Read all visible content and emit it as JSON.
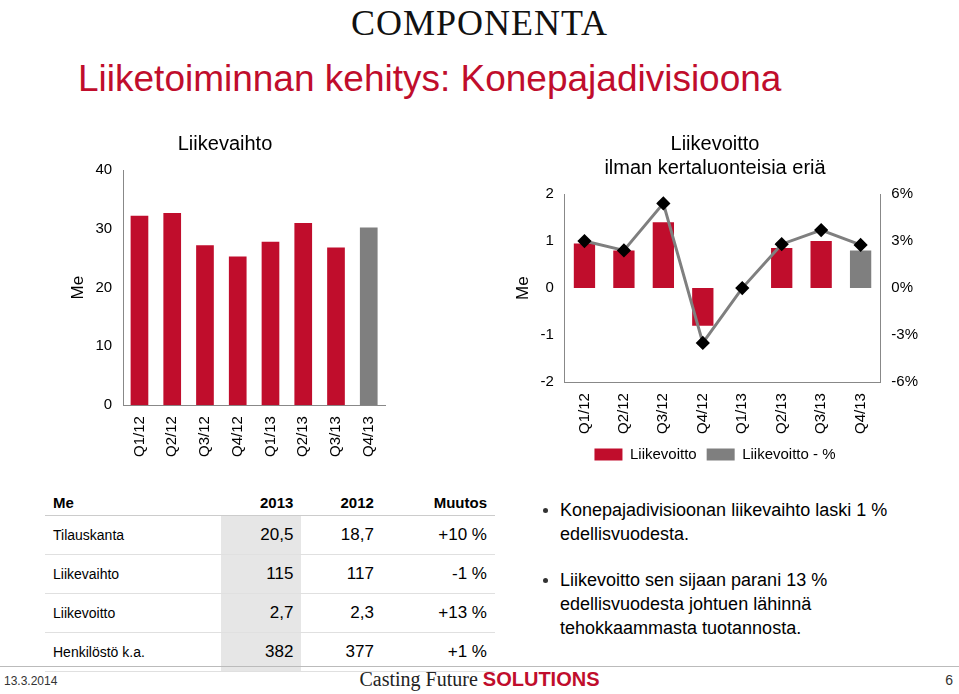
{
  "logo": "COMPONENTA",
  "title": "Liiketoiminnan kehitys: Konepajadivisioona",
  "chart_data": [
    {
      "type": "bar",
      "title": "Liikevaihto",
      "y_label": "Me",
      "categories": [
        "Q1/12",
        "Q2/12",
        "Q3/12",
        "Q4/12",
        "Q1/13",
        "Q2/13",
        "Q3/13",
        "Q4/13"
      ],
      "values": [
        32.2,
        32.7,
        27.2,
        25.3,
        27.8,
        31.0,
        26.8,
        30.2
      ],
      "colors": [
        "#c00d2c",
        "#c00d2c",
        "#c00d2c",
        "#c00d2c",
        "#c00d2c",
        "#c00d2c",
        "#c00d2c",
        "#7f7f7f"
      ],
      "ylim": [
        0,
        40
      ],
      "yticks": [
        0,
        10,
        20,
        30,
        40
      ],
      "grid": false
    },
    {
      "type": "bar",
      "title": [
        "Liikevoitto",
        "ilman kertaluonteisia eriä"
      ],
      "y_label": "Me",
      "categories": [
        "Q1/12",
        "Q2/12",
        "Q3/12",
        "Q4/12",
        "Q1/13",
        "Q2/13",
        "Q3/13",
        "Q4/13"
      ],
      "series": [
        {
          "name": "Liikevoitto",
          "type": "bar",
          "colors": [
            "#c00d2c",
            "#c00d2c",
            "#c00d2c",
            "#c00d2c",
            "#c00d2c",
            "#c00d2c",
            "#c00d2c",
            "#7f7f7f"
          ],
          "values": [
            0.95,
            0.8,
            1.4,
            -0.8,
            0.0,
            0.85,
            1.0,
            0.8
          ]
        },
        {
          "name": "Liikevoitto - %",
          "type": "line",
          "axis": "y2",
          "color": "#7f7f7f",
          "marker": "diamond",
          "values": [
            3.0,
            2.4,
            5.4,
            -3.5,
            0.0,
            2.8,
            3.7,
            2.75
          ]
        }
      ],
      "ylim": [
        -2,
        2
      ],
      "yticks": [
        -2,
        -1,
        0,
        1,
        2
      ],
      "y2lim": [
        -6,
        6
      ],
      "y2ticks": [
        {
          "value": -6,
          "label": "-6%"
        },
        {
          "value": -3,
          "label": "-3%"
        },
        {
          "value": 0,
          "label": "0%"
        },
        {
          "value": 3,
          "label": "3%"
        },
        {
          "value": 6,
          "label": "6%"
        }
      ],
      "legend": "bottom",
      "grid": false
    }
  ],
  "table": {
    "header": [
      "Me",
      "2013",
      "2012",
      "Muutos"
    ],
    "rows": [
      [
        "Tilauskanta",
        "20,5",
        "18,7",
        "+10 %"
      ],
      [
        "Liikevaihto",
        "115",
        "117",
        "-1 %"
      ],
      [
        "Liikevoitto",
        "2,7",
        "2,3",
        "+13 %"
      ],
      [
        "Henkilöstö k.a.",
        "382",
        "377",
        "+1 %"
      ]
    ]
  },
  "bullets": [
    "Konepajadivisioonan liikevaihto laski 1 % edellisvuodesta.",
    "Liikevoitto sen sijaan parani 13 % edellisvuodesta johtuen lähinnä tehokkaammasta tuotannosta."
  ],
  "footer": {
    "date": "13.3.2014",
    "tagline": [
      "Casting Future",
      "SOLUTIONS"
    ],
    "page": "6"
  }
}
